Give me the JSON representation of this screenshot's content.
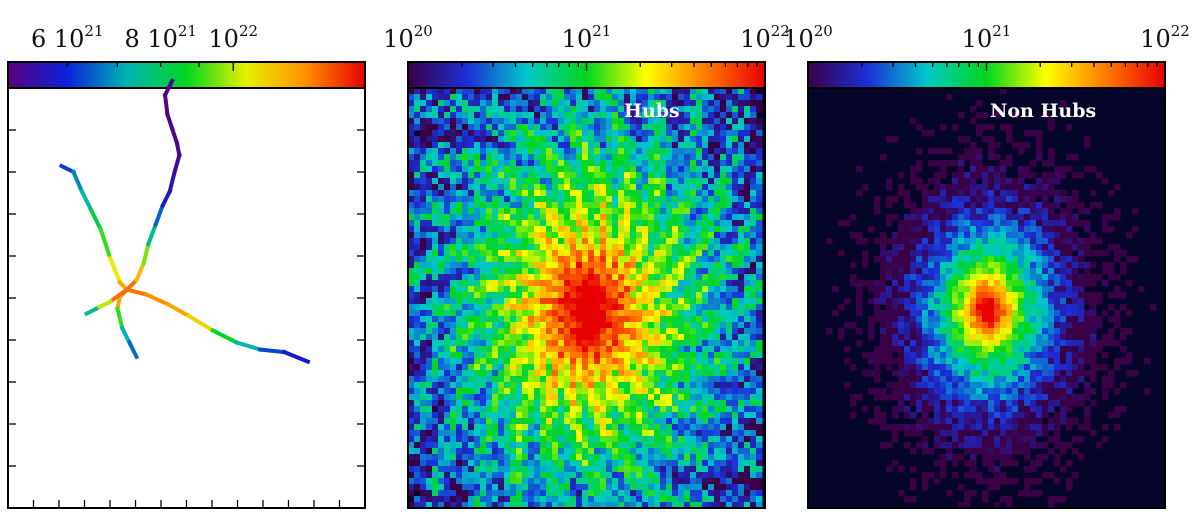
{
  "chart_data": [
    {
      "type": "line",
      "title": "",
      "colorbar": {
        "scale": "log",
        "range": [
          5e+21,
          1.5e+22
        ],
        "colormap": [
          "#5a0080",
          "#0a22d8",
          "#00b4b4",
          "#00d820",
          "#e8f000",
          "#ff9000",
          "#e80000"
        ],
        "tick_labels": [
          {
            "text": "6",
            "exponent": "21",
            "value": 6e+21
          },
          {
            "text": "8",
            "exponent": "21",
            "value": 8e+21
          },
          {
            "text": "",
            "exponent": "22",
            "value": 1e+22
          }
        ]
      },
      "series": [
        {
          "x": [
            -55,
            -45,
            -38,
            -30,
            -22,
            -14,
            -6,
            0
          ],
          "y": [
            -15,
            -20,
            -36,
            -52,
            -68,
            -92,
            -112,
            -118
          ]
        },
        {
          "x": [
            0,
            8,
            14,
            18,
            24,
            30,
            36,
            40,
            44,
            42,
            38,
            34,
            32,
            38
          ],
          "y": [
            -118,
            -110,
            -96,
            -80,
            -64,
            -48,
            -36,
            -20,
            -6,
            4,
            16,
            28,
            44,
            56
          ]
        },
        {
          "x": [
            0,
            16,
            34,
            52,
            72,
            92,
            112,
            132,
            152
          ],
          "y": [
            -118,
            -122,
            -130,
            -140,
            -152,
            -162,
            -168,
            -170,
            -178
          ]
        },
        {
          "x": [
            0,
            -6,
            -8,
            -4,
            2,
            8
          ],
          "y": [
            -118,
            -124,
            -134,
            -150,
            -162,
            -174
          ]
        },
        {
          "x": [
            0,
            -14,
            -26,
            -34
          ],
          "y": [
            -118,
            -128,
            -134,
            -138
          ]
        }
      ],
      "series_color_values": [
        [
          6.2e+21,
          6.8e+21,
          7.4e+21,
          8.3e+21,
          9e+21,
          1.05e+22,
          1.2e+22,
          1.3e+22
        ],
        [
          1.3e+22,
          1.15e+22,
          9.5e+21,
          7.6e+21,
          6.5e+21,
          5.8e+21,
          5.5e+21,
          5.3e+21,
          5.2e+21,
          5.1e+21,
          5.05e+21,
          5.05e+21,
          5.1e+21,
          5.2e+21
        ],
        [
          1.3e+22,
          1.25e+22,
          1.2e+22,
          1.1e+22,
          8.6e+21,
          7.3e+21,
          6.3e+21,
          5.8e+21,
          5.6e+21
        ],
        [
          1.3e+22,
          1.2e+22,
          9e+21,
          7.2e+21,
          6.6e+21,
          6.2e+21
        ],
        [
          1.3e+22,
          1e+22,
          7.5e+21,
          6.8e+21
        ]
      ]
    },
    {
      "type": "heatmap",
      "label": "Hubs",
      "colorbar": {
        "scale": "log",
        "range": [
          1e+20,
          1e+22
        ],
        "colormap": [
          "#3a0046",
          "#1b2fd8",
          "#00c8c8",
          "#00d61c",
          "#ffff00",
          "#ff7a00",
          "#e60000"
        ],
        "tick_labels": [
          {
            "text": "10",
            "exponent": "20",
            "value": 1e+20
          },
          {
            "text": "10",
            "exponent": "21",
            "value": 1e+21
          },
          {
            "text": "10",
            "exponent": "22",
            "value": 1e+22
          }
        ]
      },
      "profile": {
        "peak": 1.5e+22,
        "core_radius": 0.08,
        "falloff": 1.0,
        "edge_value": 5e+19,
        "filamentary": true
      }
    },
    {
      "type": "heatmap",
      "label": "Non Hubs",
      "colorbar": {
        "scale": "log",
        "range": [
          1e+20,
          1e+22
        ],
        "colormap": [
          "#3a0046",
          "#1b2fd8",
          "#00c8c8",
          "#00d61c",
          "#ffff00",
          "#ff7a00",
          "#e60000"
        ],
        "tick_labels": [
          {
            "text": "10",
            "exponent": "20",
            "value": 1e+20
          },
          {
            "text": "10",
            "exponent": "21",
            "value": 1e+21
          },
          {
            "text": "10",
            "exponent": "22",
            "value": 1e+22
          }
        ]
      },
      "profile": {
        "peak": 1.2e+22,
        "core_radius": 0.04,
        "falloff": 1.35,
        "edge_value": 6e+19,
        "filamentary": false
      }
    }
  ]
}
